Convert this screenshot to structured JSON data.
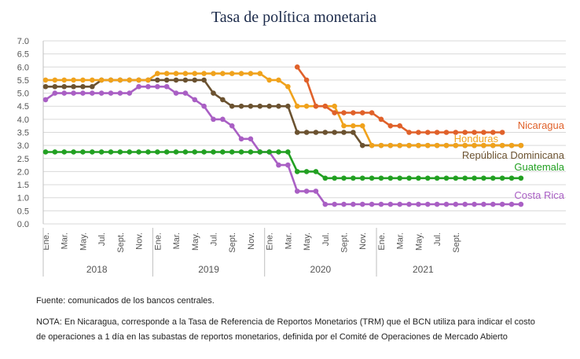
{
  "title": "Tasa de política monetaria",
  "footer": {
    "source": "Fuente: comunicados de los bancos centrales.",
    "note": "NOTA: En Nicaragua, corresponde a la Tasa de Referencia de Reportos Monetarios (TRM) que el BCN utiliza para indicar el costo de operaciones a 1 día en las subastas de reportos monetarios, definida por el Comité de Operaciones de Mercado Abierto"
  },
  "colors": {
    "Nicaragua": "#e0612a",
    "Honduras": "#f0a21c",
    "Republica Dominicana": "#6b5230",
    "Guatemala": "#22a022",
    "Costa Rica": "#a95fc4",
    "grid": "#d9d9d9"
  },
  "chart_data": {
    "type": "line",
    "title": "Tasa de política monetaria",
    "ylim": [
      0,
      7
    ],
    "y_ticks": [
      "0.0",
      "0.5",
      "1.0",
      "1.5",
      "2.0",
      "2.5",
      "3.0",
      "3.5",
      "4.0",
      "4.5",
      "5.0",
      "5.5",
      "6.0",
      "6.5",
      "7.0"
    ],
    "x_tick_labels": [
      "Ene.",
      "Mar.",
      "May.",
      "Jul.",
      "Sept.",
      "Nov.",
      "Ene.",
      "Mar.",
      "May.",
      "Jul.",
      "Sept.",
      "Nov.",
      "Ene.",
      "Mar.",
      "May.",
      "Jul.",
      "Sept.",
      "Nov.",
      "Ene.",
      "Mar.",
      "May.",
      "Jul.",
      "Sept."
    ],
    "years": [
      "2018",
      "2019",
      "2020",
      "2021"
    ],
    "grid": true,
    "series": [
      {
        "name": "Nicaragua",
        "start_month": 27,
        "values": [
          6.0,
          5.5,
          4.5,
          4.5,
          4.25,
          4.25,
          4.25,
          4.25,
          4.25,
          4.0,
          3.75,
          3.75,
          3.5,
          3.5,
          3.5,
          3.5,
          3.5,
          3.5,
          3.5,
          3.5,
          3.5,
          3.5,
          3.5
        ]
      },
      {
        "name": "Honduras",
        "start_month": 0,
        "values": [
          5.5,
          5.5,
          5.5,
          5.5,
          5.5,
          5.5,
          5.5,
          5.5,
          5.5,
          5.5,
          5.5,
          5.5,
          5.75,
          5.75,
          5.75,
          5.75,
          5.75,
          5.75,
          5.75,
          5.75,
          5.75,
          5.75,
          5.75,
          5.75,
          5.5,
          5.5,
          5.25,
          4.5,
          4.5,
          4.5,
          4.5,
          4.5,
          3.75,
          3.75,
          3.75,
          3.0,
          3.0,
          3.0,
          3.0,
          3.0,
          3.0,
          3.0,
          3.0,
          3.0,
          3.0,
          3.0,
          3.0,
          3.0,
          3.0,
          3.0,
          3.0,
          3.0
        ]
      },
      {
        "name": "República Dominicana",
        "start_month": 0,
        "values": [
          5.25,
          5.25,
          5.25,
          5.25,
          5.25,
          5.25,
          5.5,
          5.5,
          5.5,
          5.5,
          5.5,
          5.5,
          5.5,
          5.5,
          5.5,
          5.5,
          5.5,
          5.5,
          5.0,
          4.75,
          4.5,
          4.5,
          4.5,
          4.5,
          4.5,
          4.5,
          4.5,
          3.5,
          3.5,
          3.5,
          3.5,
          3.5,
          3.5,
          3.5,
          3.0,
          3.0,
          3.0,
          3.0,
          3.0,
          3.0,
          3.0,
          3.0,
          3.0,
          3.0,
          3.0,
          3.0,
          3.0,
          3.0,
          3.0,
          3.0,
          3.0,
          3.0
        ]
      },
      {
        "name": "Guatemala",
        "start_month": 0,
        "values": [
          2.75,
          2.75,
          2.75,
          2.75,
          2.75,
          2.75,
          2.75,
          2.75,
          2.75,
          2.75,
          2.75,
          2.75,
          2.75,
          2.75,
          2.75,
          2.75,
          2.75,
          2.75,
          2.75,
          2.75,
          2.75,
          2.75,
          2.75,
          2.75,
          2.75,
          2.75,
          2.75,
          2.0,
          2.0,
          2.0,
          1.75,
          1.75,
          1.75,
          1.75,
          1.75,
          1.75,
          1.75,
          1.75,
          1.75,
          1.75,
          1.75,
          1.75,
          1.75,
          1.75,
          1.75,
          1.75,
          1.75,
          1.75,
          1.75,
          1.75,
          1.75,
          1.75
        ]
      },
      {
        "name": "Costa Rica",
        "start_month": 0,
        "values": [
          4.75,
          5.0,
          5.0,
          5.0,
          5.0,
          5.0,
          5.0,
          5.0,
          5.0,
          5.0,
          5.25,
          5.25,
          5.25,
          5.25,
          5.0,
          5.0,
          4.75,
          4.5,
          4.0,
          4.0,
          3.75,
          3.25,
          3.25,
          2.75,
          2.75,
          2.25,
          2.25,
          1.25,
          1.25,
          1.25,
          0.75,
          0.75,
          0.75,
          0.75,
          0.75,
          0.75,
          0.75,
          0.75,
          0.75,
          0.75,
          0.75,
          0.75,
          0.75,
          0.75,
          0.75,
          0.75,
          0.75,
          0.75,
          0.75,
          0.75,
          0.75,
          0.75
        ]
      }
    ]
  }
}
